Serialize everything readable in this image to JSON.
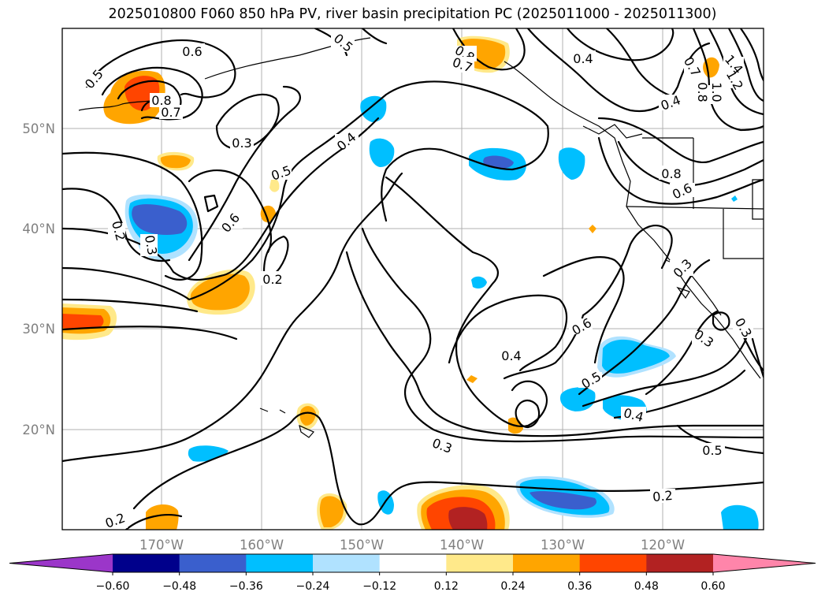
{
  "title": "2025010800 F060 850 hPa PV, river basin precipitation PC (2025011000 - 2025011300)",
  "map": {
    "lon_labels": [
      "170°W",
      "160°W",
      "150°W",
      "140°W",
      "130°W",
      "120°W"
    ],
    "lat_labels": [
      "50°N",
      "40°N",
      "30°N",
      "20°N"
    ]
  },
  "contour_labels": [
    {
      "text": "0.6",
      "note": "northwest high"
    },
    {
      "text": "0.5"
    },
    {
      "text": "0.8"
    },
    {
      "text": "0.7"
    },
    {
      "text": "0.3"
    },
    {
      "text": "0.4"
    },
    {
      "text": "0.5"
    },
    {
      "text": "0.6"
    },
    {
      "text": "0.2"
    },
    {
      "text": "0.3"
    },
    {
      "text": "0.2"
    },
    {
      "text": "0.5"
    },
    {
      "text": "0.8"
    },
    {
      "text": "0.7"
    },
    {
      "text": "0.4"
    },
    {
      "text": "0.7"
    },
    {
      "text": "1.4"
    },
    {
      "text": "1.2"
    },
    {
      "text": "1.0"
    },
    {
      "text": "0.8"
    },
    {
      "text": "0.4"
    },
    {
      "text": "0.8"
    },
    {
      "text": "0.6"
    },
    {
      "text": "0.3"
    },
    {
      "text": "0.3"
    },
    {
      "text": "0.3"
    },
    {
      "text": "0.6"
    },
    {
      "text": "0.4"
    },
    {
      "text": "0.5"
    },
    {
      "text": "0.4"
    },
    {
      "text": "0.3"
    },
    {
      "text": "0.5"
    },
    {
      "text": "0.2"
    },
    {
      "text": "0.2"
    }
  ],
  "colorbar": {
    "ticks": [
      "−0.60",
      "−0.48",
      "−0.36",
      "−0.24",
      "−0.12",
      "0.12",
      "0.24",
      "0.36",
      "0.48",
      "0.60"
    ],
    "colors": [
      "#9b36c9",
      "#00008b",
      "#3a5fcd",
      "#00bfff",
      "#b0e2ff",
      "#ffffff",
      "#ffe98a",
      "#ffa500",
      "#ff4500",
      "#b22222",
      "#ff85aa"
    ]
  },
  "legend_colors": {
    "neg_strong": "#3a5fcd",
    "neg": "#00bfff",
    "neg_weak": "#b0e2ff",
    "pos_weak": "#ffe98a",
    "pos": "#ffa500",
    "pos_strong": "#ff4500",
    "pos_max": "#b22222"
  }
}
